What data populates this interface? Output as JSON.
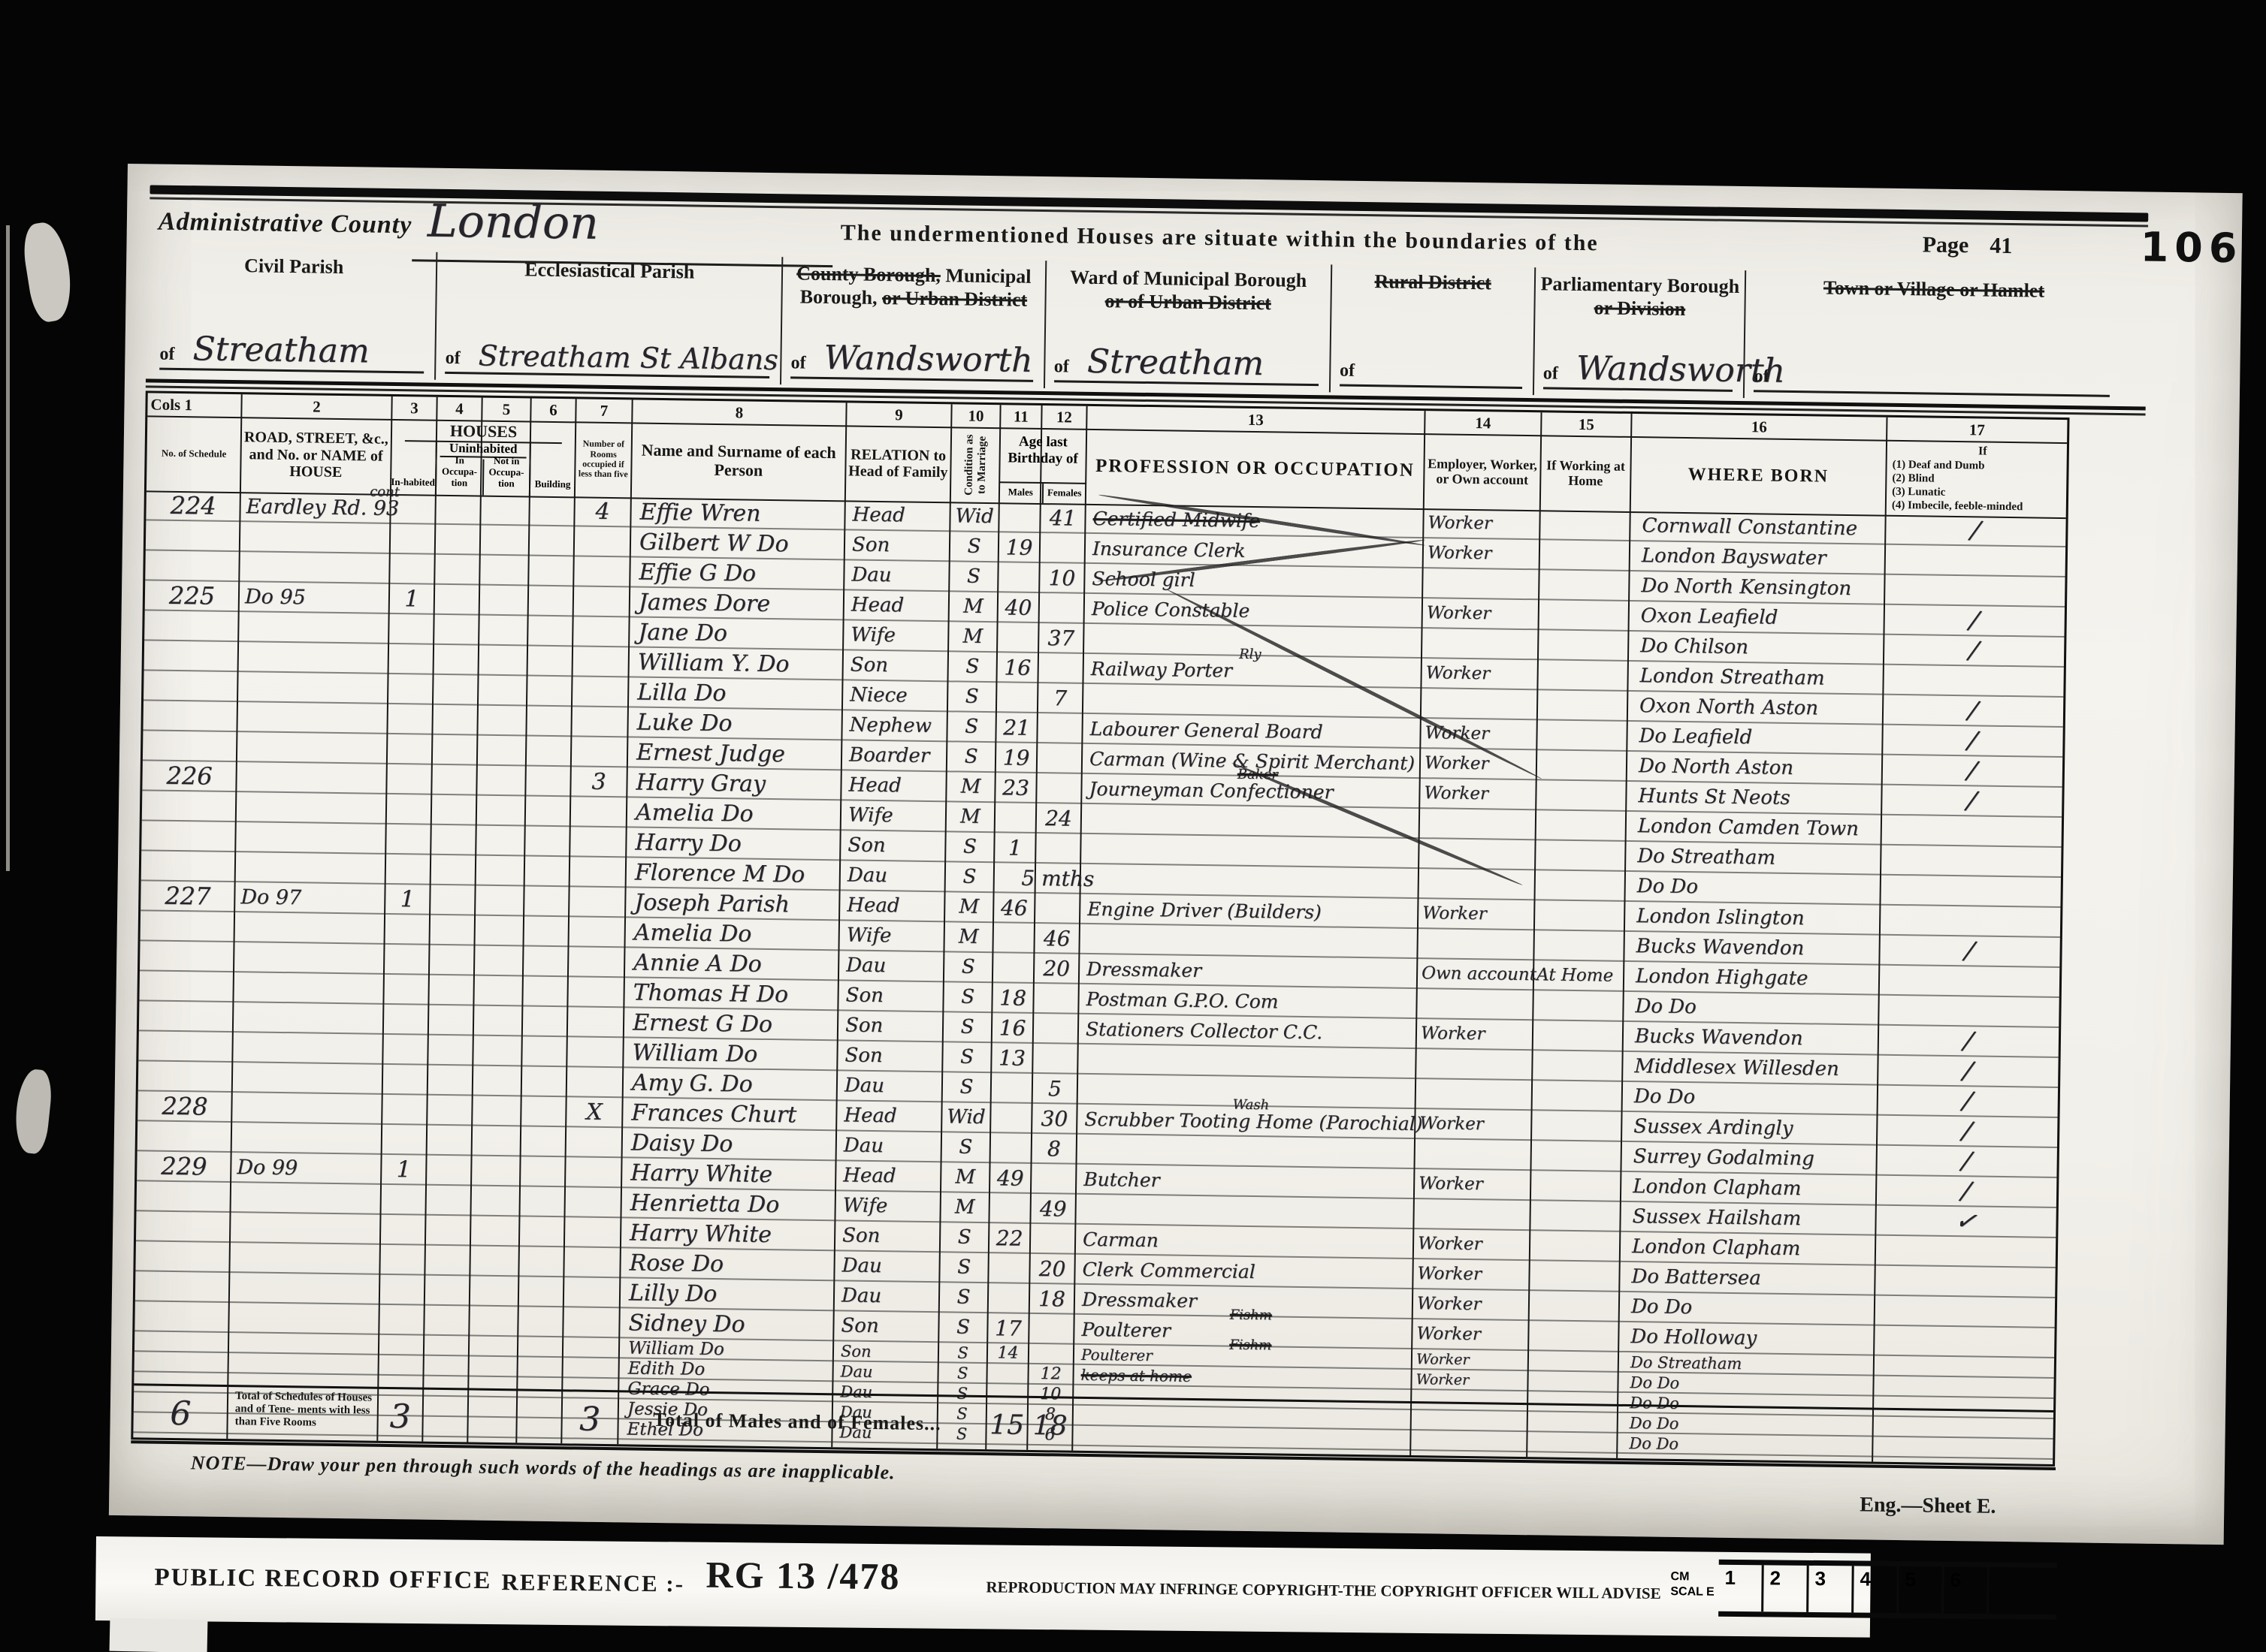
{
  "page": {
    "admin_county_label": "Administrative County",
    "admin_county_value": "London",
    "situate_text": "The undermentioned Houses are situate within the boundaries of the",
    "page_label": "Page",
    "page_number": "41",
    "stamp": "106",
    "of_label": "of",
    "note": "NOTE—Draw your pen through such words of the headings as are inapplicable.",
    "sheet": "Eng.—Sheet E."
  },
  "regions": [
    {
      "label_lines": [
        [
          {
            "t": "Civil Parish"
          }
        ]
      ],
      "value": "Streatham"
    },
    {
      "label_lines": [
        [
          {
            "t": "Ecclesiastical Parish"
          }
        ]
      ],
      "value": "Streatham St Albans"
    },
    {
      "label_lines": [
        [
          {
            "t": "County Borough,",
            "s": true
          },
          {
            "t": " Municipal"
          }
        ],
        [
          {
            "t": "Borough, "
          },
          {
            "t": "or Urban District",
            "s": true
          }
        ]
      ],
      "value": "Wandsworth"
    },
    {
      "label_lines": [
        [
          {
            "t": "Ward of Municipal Borough"
          }
        ],
        [
          {
            "t": "or of Urban District",
            "s": true
          }
        ]
      ],
      "value": "Streatham"
    },
    {
      "label_lines": [
        [
          {
            "t": "Rural District",
            "s": true
          }
        ]
      ],
      "value": ""
    },
    {
      "label_lines": [
        [
          {
            "t": "Parliamentary Borough"
          }
        ],
        [
          {
            "t": "or Division",
            "s": true
          }
        ]
      ],
      "value": "Wandsworth"
    },
    {
      "label_lines": [
        [
          {
            "t": "Town or Village or Hamlet",
            "s": true
          }
        ]
      ],
      "value": ""
    }
  ],
  "table": {
    "col_numbers": [
      "Cols 1",
      "2",
      "3",
      "4",
      "5",
      "6",
      "7",
      "8",
      "9",
      "10",
      "11",
      "12",
      "13",
      "14",
      "15",
      "16",
      "17"
    ],
    "header": {
      "col1": "No. of Schedule",
      "col2": "ROAD, STREET, &c., and No. or NAME of HOUSE",
      "houses": "HOUSES",
      "inhabited": "In-habited",
      "uninhabited": "Uninhabited",
      "in_occupation": "In Occupa-tion",
      "not_in_occupation": "Not in Occupa-tion",
      "building": "Building",
      "col7": "Number of Rooms occupied if less than five",
      "col8": "Name and Surname of each Person",
      "col9": "RELATION to Head of Family",
      "col10": "Condition as to Marriage",
      "age": "Age last Birthday of",
      "males": "Males",
      "females": "Females",
      "col13": "PROFESSION OR OCCUPATION",
      "col14": "Employer, Worker, or Own account",
      "col15": "If Working at Home",
      "col16": "WHERE BORN",
      "inf_title": "If",
      "inf_1": "(1) Deaf and Dumb",
      "inf_2": "(2) Blind",
      "inf_3": "(3) Lunatic",
      "inf_4": "(4) Imbecile, feeble-minded"
    },
    "rows": [
      {
        "schedule": "224",
        "address": "Eardley Rd. 93",
        "address_note": "cont",
        "rooms": "4",
        "name": "Effie Wren",
        "relation": "Head",
        "condition": "Wid",
        "age_f": "41",
        "occupation": "Certified Midwife",
        "occupation_struck": true,
        "employer": "Worker",
        "born": "Cornwall Constantine",
        "infirmity": "/"
      },
      {
        "name": "Gilbert W Do",
        "relation": "Son",
        "condition": "S",
        "age_m": "19",
        "occupation": "Insurance Clerk",
        "employer": "Worker",
        "born": "London Bayswater"
      },
      {
        "name": "Effie G Do",
        "relation": "Dau",
        "condition": "S",
        "age_f": "10",
        "occupation": "School girl",
        "born": "Do North Kensington"
      },
      {
        "schedule": "225",
        "address": "Do 95",
        "inhabited": "1",
        "name": "James Dore",
        "relation": "Head",
        "condition": "M",
        "age_m": "40",
        "occupation": "Police Constable",
        "employer": "Worker",
        "born": "Oxon Leafield",
        "infirmity": "/"
      },
      {
        "name": "Jane Do",
        "relation": "Wife",
        "condition": "M",
        "age_f": "37",
        "born": "Do Chilson",
        "infirmity": "/"
      },
      {
        "name": "William Y. Do",
        "relation": "Son",
        "condition": "S",
        "age_m": "16",
        "occupation": "Railway Porter",
        "occupation_note": "Rly",
        "employer": "Worker",
        "born": "London Streatham"
      },
      {
        "name": "Lilla Do",
        "relation": "Niece",
        "condition": "S",
        "age_f": "7",
        "born": "Oxon North Aston",
        "infirmity": "/"
      },
      {
        "name": "Luke Do",
        "relation": "Nephew",
        "condition": "S",
        "age_m": "21",
        "occupation": "Labourer General Board",
        "employer": "Worker",
        "born": "Do Leafield",
        "infirmity": "/"
      },
      {
        "name": "Ernest Judge",
        "relation": "Boarder",
        "condition": "S",
        "age_m": "19",
        "occupation": "Carman (Wine & Spirit Merchant)",
        "employer": "Worker",
        "born": "Do North Aston",
        "infirmity": "/"
      },
      {
        "schedule": "226",
        "rooms": "3",
        "name": "Harry Gray",
        "relation": "Head",
        "condition": "M",
        "age_m": "23",
        "occupation": "Journeyman Confectioner",
        "occupation_note": "Baker",
        "occupation_note_struck": true,
        "employer": "Worker",
        "born": "Hunts St Neots",
        "infirmity": "/"
      },
      {
        "name": "Amelia Do",
        "relation": "Wife",
        "condition": "M",
        "age_f": "24",
        "born": "London Camden Town"
      },
      {
        "name": "Harry Do",
        "relation": "Son",
        "condition": "S",
        "age_m": "1",
        "born": "Do Streatham"
      },
      {
        "name": "Florence M Do",
        "relation": "Dau",
        "condition": "S",
        "age_f": "5 mths",
        "born": "Do Do"
      },
      {
        "schedule": "227",
        "address": "Do 97",
        "inhabited": "1",
        "name": "Joseph Parish",
        "relation": "Head",
        "condition": "M",
        "age_m": "46",
        "occupation": "Engine Driver (Builders)",
        "employer": "Worker",
        "born": "London Islington"
      },
      {
        "name": "Amelia Do",
        "relation": "Wife",
        "condition": "M",
        "age_f": "46",
        "born": "Bucks Wavendon",
        "infirmity": "/"
      },
      {
        "name": "Annie A Do",
        "relation": "Dau",
        "condition": "S",
        "age_f": "20",
        "occupation": "Dressmaker",
        "employer": "Own account",
        "at_home": "At Home",
        "born": "London Highgate"
      },
      {
        "name": "Thomas H Do",
        "relation": "Son",
        "condition": "S",
        "age_m": "18",
        "occupation": "Postman G.P.O. Com",
        "born": "Do Do"
      },
      {
        "name": "Ernest G Do",
        "relation": "Son",
        "condition": "S",
        "age_m": "16",
        "occupation": "Stationers Collector C.C.",
        "employer": "Worker",
        "born": "Bucks Wavendon",
        "infirmity": "/"
      },
      {
        "name": "William Do",
        "relation": "Son",
        "condition": "S",
        "age_m": "13",
        "born": "Middlesex Willesden",
        "infirmity": "/"
      },
      {
        "name": "Amy G. Do",
        "relation": "Dau",
        "condition": "S",
        "age_f": "5",
        "born": "Do Do",
        "infirmity": "/"
      },
      {
        "schedule": "228",
        "rooms": "X",
        "name": "Frances Churt",
        "relation": "Head",
        "condition": "Wid",
        "age_f": "30",
        "occupation": "Scrubber Tooting Home (Parochial)",
        "occupation_note": "Wash",
        "employer": "Worker",
        "born": "Sussex Ardingly",
        "infirmity": "/"
      },
      {
        "name": "Daisy Do",
        "relation": "Dau",
        "condition": "S",
        "age_f": "8",
        "born": "Surrey Godalming",
        "infirmity": "/"
      },
      {
        "schedule": "229",
        "address": "Do 99",
        "inhabited": "1",
        "name": "Harry White",
        "relation": "Head",
        "condition": "M",
        "age_m": "49",
        "occupation": "Butcher",
        "employer": "Worker",
        "born": "London Clapham",
        "infirmity": "/"
      },
      {
        "name": "Henrietta Do",
        "relation": "Wife",
        "condition": "M",
        "age_f": "49",
        "born": "Sussex Hailsham",
        "infirmity": "✓"
      },
      {
        "name": "Harry White",
        "relation": "Son",
        "condition": "S",
        "age_m": "22",
        "occupation": "Carman",
        "employer": "Worker",
        "born": "London Clapham"
      },
      {
        "name": "Rose Do",
        "relation": "Dau",
        "condition": "S",
        "age_f": "20",
        "occupation": "Clerk Commercial",
        "employer": "Worker",
        "born": "Do Battersea"
      },
      {
        "name": "Lilly Do",
        "relation": "Dau",
        "condition": "S",
        "age_f": "18",
        "occupation": "Dressmaker",
        "employer": "Worker",
        "born": "Do Do"
      },
      {
        "name": "Sidney Do",
        "relation": "Son",
        "condition": "S",
        "age_m": "17",
        "occupation": "Poulterer",
        "occupation_note": "Fishm",
        "occupation_note_struck": true,
        "employer": "Worker",
        "born": "Do Holloway"
      },
      {
        "name": "William Do",
        "relation": "Son",
        "condition": "S",
        "age_m": "14",
        "occupation": "Poulterer",
        "occupation_note": "Fishm",
        "occupation_note_struck": true,
        "employer": "Worker",
        "born": "Do Streatham"
      },
      {
        "name": "Edith Do",
        "relation": "Dau",
        "condition": "S",
        "age_f": "12",
        "occupation": "keeps at home",
        "occupation_struck": true,
        "employer": "Worker",
        "born": "Do Do"
      },
      {
        "name": "Grace Do",
        "relation": "Dau",
        "condition": "S",
        "age_f": "10",
        "born": "Do Do"
      },
      {
        "name": "Jessie Do",
        "relation": "Dau",
        "condition": "S",
        "age_f": "8",
        "born": "Do Do"
      },
      {
        "name": "Ethel Do",
        "relation": "Dau",
        "condition": "S",
        "age_f": "6",
        "born": "Do Do"
      }
    ],
    "totals": {
      "schedules": "6",
      "schedules_label": "Total of Schedules of Houses and of Tene- ments with less than Five Rooms",
      "houses": "3",
      "rooms": "3",
      "mf_label": "Total of Males and of Females...",
      "males": "15",
      "females": "18"
    }
  },
  "footer": {
    "office": "PUBLIC RECORD OFFICE",
    "reference_label": "REFERENCE :-",
    "reference": "RG 13 /478",
    "notice": "REPRODUCTION MAY INFRINGE COPYRIGHT-THE COPYRIGHT OFFICER WILL ADVISE",
    "scale_label": "CM SCAL E",
    "ruler": [
      "1",
      "2",
      "3",
      "4",
      "5",
      "6"
    ]
  }
}
